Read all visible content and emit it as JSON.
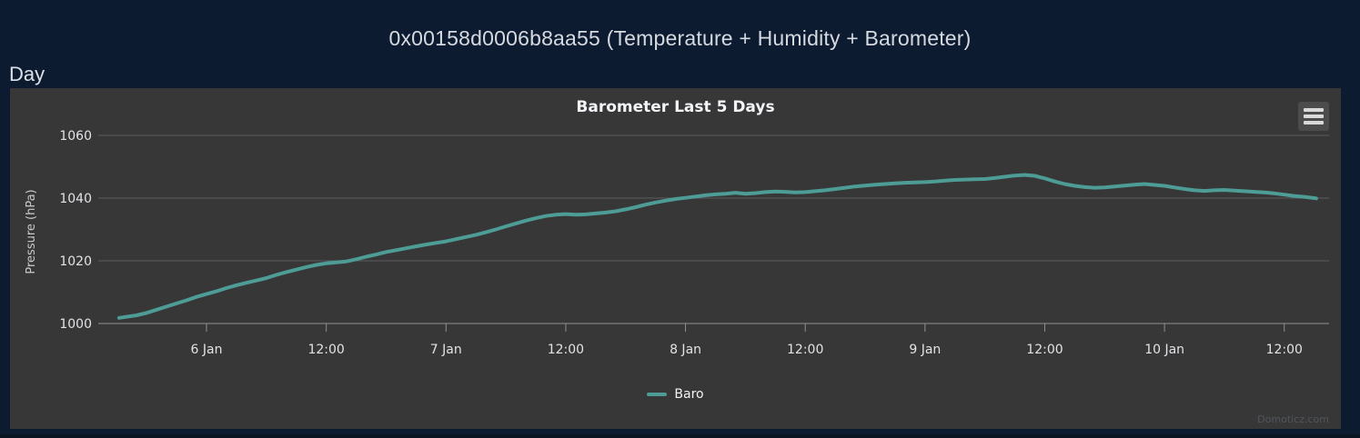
{
  "page": {
    "title": "0x00158d0006b8aa55 (Temperature + Humidity + Barometer)",
    "range_label": "Day",
    "background_color": "#0d1b30",
    "watermark": "Domoticz.com"
  },
  "chart": {
    "panel_color": "#373737",
    "export_menu_icon": "hamburger-icon"
  },
  "chart_data": {
    "type": "line",
    "title": "Barometer Last 5 Days",
    "ylabel": "Pressure (hPa)",
    "xlabel": "",
    "grid": "horizontal",
    "legend_position": "bottom-center",
    "y_ticks": [
      1000,
      1020,
      1040,
      1060
    ],
    "ylim": [
      1000,
      1060
    ],
    "x_tick_labels": [
      "6 Jan",
      "12:00",
      "7 Jan",
      "12:00",
      "8 Jan",
      "12:00",
      "9 Jan",
      "12:00",
      "10 Jan",
      "12:00"
    ],
    "x_tick_hours": [
      0,
      12,
      24,
      36,
      48,
      60,
      72,
      84,
      96,
      108
    ],
    "x_unit": "hours since 6 Jan 00:00",
    "xlim": [
      -10.85,
      112.5
    ],
    "colors": {
      "gridline": "#5d5d60",
      "axisline": "#909092",
      "tick_label": "#e2e3e6",
      "axis_title": "#c9cacd"
    },
    "series": [
      {
        "name": "Baro",
        "color": "#4E9C96",
        "points": [
          [
            -8.75,
            1001.8
          ],
          [
            -7,
            1002.6
          ],
          [
            -6,
            1003.4
          ],
          [
            -5,
            1004.4
          ],
          [
            -4,
            1005.4
          ],
          [
            -3,
            1006.4
          ],
          [
            -2,
            1007.4
          ],
          [
            -1,
            1008.5
          ],
          [
            0,
            1009.4
          ],
          [
            1,
            1010.3
          ],
          [
            2,
            1011.3
          ],
          [
            3,
            1012.2
          ],
          [
            4,
            1013.0
          ],
          [
            5,
            1013.7
          ],
          [
            6,
            1014.5
          ],
          [
            7,
            1015.5
          ],
          [
            8,
            1016.4
          ],
          [
            9,
            1017.2
          ],
          [
            10,
            1018.0
          ],
          [
            11,
            1018.7
          ],
          [
            12,
            1019.2
          ],
          [
            13,
            1019.5
          ],
          [
            14,
            1019.8
          ],
          [
            15,
            1020.5
          ],
          [
            16,
            1021.3
          ],
          [
            17,
            1022.0
          ],
          [
            18,
            1022.8
          ],
          [
            19,
            1023.4
          ],
          [
            20,
            1024.0
          ],
          [
            21,
            1024.6
          ],
          [
            22,
            1025.2
          ],
          [
            23,
            1025.7
          ],
          [
            24,
            1026.2
          ],
          [
            25,
            1026.9
          ],
          [
            26,
            1027.6
          ],
          [
            27,
            1028.3
          ],
          [
            28,
            1029.1
          ],
          [
            29,
            1030.0
          ],
          [
            30,
            1031.0
          ],
          [
            31,
            1031.9
          ],
          [
            32,
            1032.8
          ],
          [
            33,
            1033.6
          ],
          [
            34,
            1034.3
          ],
          [
            35,
            1034.7
          ],
          [
            36,
            1034.9
          ],
          [
            37,
            1034.7
          ],
          [
            38,
            1034.8
          ],
          [
            39,
            1035.1
          ],
          [
            40,
            1035.4
          ],
          [
            41,
            1035.8
          ],
          [
            42,
            1036.4
          ],
          [
            43,
            1037.1
          ],
          [
            44,
            1037.9
          ],
          [
            45,
            1038.6
          ],
          [
            46,
            1039.2
          ],
          [
            47,
            1039.7
          ],
          [
            48,
            1040.1
          ],
          [
            49,
            1040.5
          ],
          [
            50,
            1040.9
          ],
          [
            51,
            1041.2
          ],
          [
            52,
            1041.4
          ],
          [
            53,
            1041.7
          ],
          [
            54,
            1041.4
          ],
          [
            55,
            1041.6
          ],
          [
            56,
            1041.9
          ],
          [
            57,
            1042.1
          ],
          [
            58,
            1042.0
          ],
          [
            59,
            1041.8
          ],
          [
            60,
            1041.9
          ],
          [
            61,
            1042.2
          ],
          [
            62,
            1042.5
          ],
          [
            63,
            1042.9
          ],
          [
            64,
            1043.3
          ],
          [
            65,
            1043.7
          ],
          [
            66,
            1044.0
          ],
          [
            67,
            1044.3
          ],
          [
            68,
            1044.5
          ],
          [
            69,
            1044.7
          ],
          [
            70,
            1044.9
          ],
          [
            71,
            1045.0
          ],
          [
            72,
            1045.1
          ],
          [
            73,
            1045.3
          ],
          [
            74,
            1045.6
          ],
          [
            75,
            1045.8
          ],
          [
            76,
            1045.9
          ],
          [
            77,
            1046.0
          ],
          [
            78,
            1046.1
          ],
          [
            79,
            1046.4
          ],
          [
            80,
            1046.8
          ],
          [
            81,
            1047.2
          ],
          [
            82,
            1047.4
          ],
          [
            83,
            1047.1
          ],
          [
            84,
            1046.3
          ],
          [
            85,
            1045.3
          ],
          [
            86,
            1044.5
          ],
          [
            87,
            1043.9
          ],
          [
            88,
            1043.5
          ],
          [
            89,
            1043.3
          ],
          [
            90,
            1043.4
          ],
          [
            91,
            1043.7
          ],
          [
            92,
            1044.0
          ],
          [
            93,
            1044.3
          ],
          [
            94,
            1044.5
          ],
          [
            95,
            1044.2
          ],
          [
            96,
            1043.9
          ],
          [
            97,
            1043.4
          ],
          [
            98,
            1042.9
          ],
          [
            99,
            1042.5
          ],
          [
            100,
            1042.3
          ],
          [
            101,
            1042.5
          ],
          [
            102,
            1042.6
          ],
          [
            103,
            1042.4
          ],
          [
            104,
            1042.2
          ],
          [
            105,
            1042.0
          ],
          [
            106,
            1041.8
          ],
          [
            107,
            1041.5
          ],
          [
            108,
            1041.1
          ],
          [
            109,
            1040.7
          ],
          [
            110,
            1040.4
          ],
          [
            111,
            1040.0
          ],
          [
            111.2,
            1039.9
          ]
        ]
      }
    ]
  }
}
